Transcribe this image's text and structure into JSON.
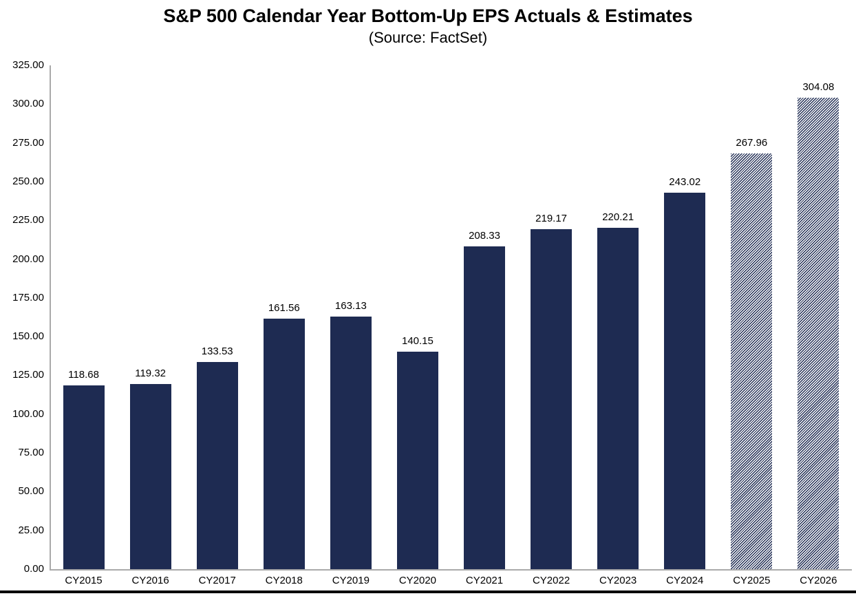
{
  "title": "S&P 500 Calendar Year Bottom-Up EPS Actuals & Estimates",
  "subtitle": "(Source: FactSet)",
  "colors": {
    "bar": "#1e2b52",
    "axis_line": "#a9a9a9",
    "label_text": "#000000",
    "background": "#ffffff",
    "bottom_rule": "#000000"
  },
  "chart_data": {
    "type": "bar",
    "title": "S&P 500 Calendar Year Bottom-Up EPS Actuals & Estimates",
    "subtitle": "(Source: FactSet)",
    "categories": [
      "CY2015",
      "CY2016",
      "CY2017",
      "CY2018",
      "CY2019",
      "CY2020",
      "CY2021",
      "CY2022",
      "CY2023",
      "CY2024",
      "CY2025",
      "CY2026"
    ],
    "values": [
      118.68,
      119.32,
      133.53,
      161.56,
      163.13,
      140.15,
      208.33,
      219.17,
      220.21,
      243.02,
      267.96,
      304.08
    ],
    "value_labels": [
      "118.68",
      "119.32",
      "133.53",
      "161.56",
      "163.13",
      "140.15",
      "208.33",
      "219.17",
      "220.21",
      "243.02",
      "267.96",
      "304.08"
    ],
    "bar_styles": [
      "solid",
      "solid",
      "solid",
      "solid",
      "solid",
      "solid",
      "solid",
      "solid",
      "solid",
      "solid",
      "hatched",
      "hatched"
    ],
    "estimate_categories": [
      "CY2025",
      "CY2026"
    ],
    "xlabel": "",
    "ylabel": "",
    "ylim": [
      0,
      325
    ],
    "ytick_step": 25,
    "ytick_labels": [
      "0.00",
      "25.00",
      "50.00",
      "75.00",
      "100.00",
      "125.00",
      "150.00",
      "175.00",
      "200.00",
      "225.00",
      "250.00",
      "275.00",
      "300.00",
      "325.00"
    ],
    "grid": false,
    "legend_position": "none"
  }
}
